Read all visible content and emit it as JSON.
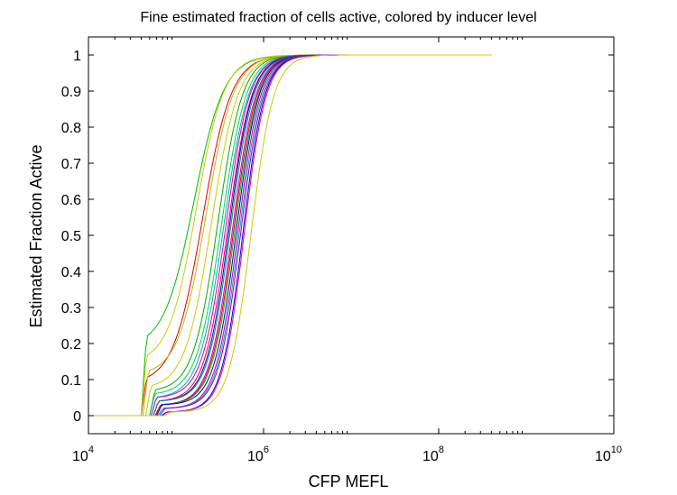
{
  "chart_data": {
    "type": "line",
    "title": "Fine estimated fraction of cells active, colored by inducer level",
    "xlabel": "CFP MEFL",
    "ylabel": "Estimated Fraction Active",
    "x_scale": "log",
    "xlim": [
      10000,
      10000000000
    ],
    "ylim": [
      -0.05,
      1.05
    ],
    "x_ticks": [
      {
        "base": "10",
        "exp": "4",
        "value": 10000
      },
      {
        "base": "10",
        "exp": "6",
        "value": 1000000
      },
      {
        "base": "10",
        "exp": "8",
        "value": 100000000
      },
      {
        "base": "10",
        "exp": "10",
        "value": 10000000000
      }
    ],
    "y_ticks": [
      "0",
      "0.1",
      "0.2",
      "0.3",
      "0.4",
      "0.5",
      "0.6",
      "0.7",
      "0.8",
      "0.9",
      "1"
    ],
    "grid": false,
    "legend": "none",
    "x_max_data": 400000000,
    "series": [
      {
        "color": "#00bb00",
        "start": 40000,
        "jump": 0.21,
        "mid": 160000,
        "steep": 1.15
      },
      {
        "color": "#dd0000",
        "start": 40000,
        "jump": 0.1,
        "mid": 200000,
        "steep": 1.2
      },
      {
        "color": "#cccc00",
        "start": 40000,
        "jump": 0.16,
        "mid": 170000,
        "steep": 1.25
      },
      {
        "color": "#bbbb00",
        "start": 42000,
        "jump": 0.12,
        "mid": 220000,
        "steep": 1.25
      },
      {
        "color": "#cccc00",
        "start": 45000,
        "jump": 0.08,
        "mid": 255000,
        "steep": 1.3
      },
      {
        "color": "#00aa00",
        "start": 50000,
        "jump": 0.07,
        "mid": 300000,
        "steep": 1.4
      },
      {
        "color": "#00cc66",
        "start": 50000,
        "jump": 0.06,
        "mid": 330000,
        "steep": 1.4
      },
      {
        "color": "#00aaaa",
        "start": 52000,
        "jump": 0.05,
        "mid": 350000,
        "steep": 1.4
      },
      {
        "color": "#cc00cc",
        "start": 52000,
        "jump": 0.05,
        "mid": 370000,
        "steep": 1.45
      },
      {
        "color": "#dd0044",
        "start": 55000,
        "jump": 0.04,
        "mid": 390000,
        "steep": 1.45
      },
      {
        "color": "#0000cc",
        "start": 55000,
        "jump": 0.04,
        "mid": 405000,
        "steep": 1.5
      },
      {
        "color": "#008888",
        "start": 55000,
        "jump": 0.04,
        "mid": 420000,
        "steep": 1.5
      },
      {
        "color": "#cc00cc",
        "start": 58000,
        "jump": 0.03,
        "mid": 440000,
        "steep": 1.5
      },
      {
        "color": "#dd0000",
        "start": 58000,
        "jump": 0.03,
        "mid": 455000,
        "steep": 1.5
      },
      {
        "color": "#00bb00",
        "start": 60000,
        "jump": 0.03,
        "mid": 470000,
        "steep": 1.5
      },
      {
        "color": "#0000cc",
        "start": 60000,
        "jump": 0.03,
        "mid": 490000,
        "steep": 1.55
      },
      {
        "color": "#cc0088",
        "start": 62000,
        "jump": 0.02,
        "mid": 510000,
        "steep": 1.55
      },
      {
        "color": "#00aaaa",
        "start": 62000,
        "jump": 0.02,
        "mid": 530000,
        "steep": 1.55
      },
      {
        "color": "#8800cc",
        "start": 65000,
        "jump": 0.02,
        "mid": 550000,
        "steep": 1.55
      },
      {
        "color": "#0000cc",
        "start": 68000,
        "jump": 0.01,
        "mid": 580000,
        "steep": 1.6
      },
      {
        "color": "#cc00cc",
        "start": 70000,
        "jump": 0.01,
        "mid": 600000,
        "steep": 1.6
      },
      {
        "color": "#cccc00",
        "start": 75000,
        "jump": 0.01,
        "mid": 720000,
        "steep": 1.55
      }
    ]
  }
}
